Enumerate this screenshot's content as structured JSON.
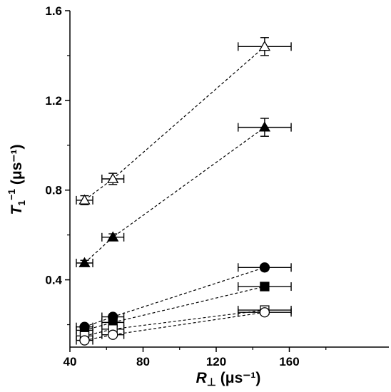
{
  "chart_data": {
    "type": "scatter",
    "xlabel": {
      "main": "R",
      "sub": "⊥",
      "unit": " (μs⁻¹)"
    },
    "ylabel": {
      "main": "T",
      "sub": "1",
      "sup": "−1",
      "unit": " (μs⁻¹)"
    },
    "xlim": [
      40,
      180
    ],
    "ylim": [
      0.1,
      1.6
    ],
    "xticks": [
      40,
      80,
      120,
      160
    ],
    "xtick_labels": [
      "40",
      "80",
      "120",
      "160"
    ],
    "yticks": [
      0.4,
      0.8,
      1.2,
      1.6
    ],
    "ytick_labels": [
      "0.4",
      "0.8",
      "1.2",
      "1.6"
    ],
    "grid": false,
    "colors": {
      "axis": "#000000",
      "marker_filled": "#000000",
      "marker_open": "#ffffff"
    },
    "series": [
      {
        "marker": "triangle-open",
        "x": [
          48,
          63.5,
          146.5
        ],
        "y": [
          0.755,
          0.85,
          1.44
        ],
        "xerr": [
          4.5,
          6,
          14.5
        ],
        "yerr": [
          0.02,
          0.025,
          0.04
        ]
      },
      {
        "marker": "triangle-filled",
        "x": [
          48,
          63.5,
          146.5
        ],
        "y": [
          0.475,
          0.59,
          1.08
        ],
        "xerr": [
          4.5,
          6,
          14.5
        ],
        "yerr": [
          0.012,
          0.015,
          0.04
        ]
      },
      {
        "marker": "circle-filled",
        "x": [
          48,
          63.5,
          146.5
        ],
        "y": [
          0.19,
          0.235,
          0.455
        ],
        "xerr": [
          4.5,
          6,
          14.5
        ],
        "yerr": [
          0.008,
          0.008,
          0.01
        ]
      },
      {
        "marker": "square-filled",
        "x": [
          48,
          63.5,
          146.5
        ],
        "y": [
          0.175,
          0.21,
          0.37
        ],
        "xerr": [
          4.5,
          6,
          14.5
        ],
        "yerr": [
          0.008,
          0.008,
          0.008
        ]
      },
      {
        "marker": "square-open",
        "x": [
          48,
          63.5,
          146.5
        ],
        "y": [
          0.15,
          0.18,
          0.265
        ],
        "xerr": [
          4.5,
          6,
          14.5
        ],
        "yerr": [
          0.008,
          0.008,
          0.008
        ]
      },
      {
        "marker": "circle-open",
        "x": [
          48,
          63.5,
          146.5
        ],
        "y": [
          0.13,
          0.155,
          0.255
        ],
        "xerr": [
          4.5,
          6,
          14.5
        ],
        "yerr": [
          0.008,
          0.008,
          0.008
        ]
      }
    ]
  }
}
